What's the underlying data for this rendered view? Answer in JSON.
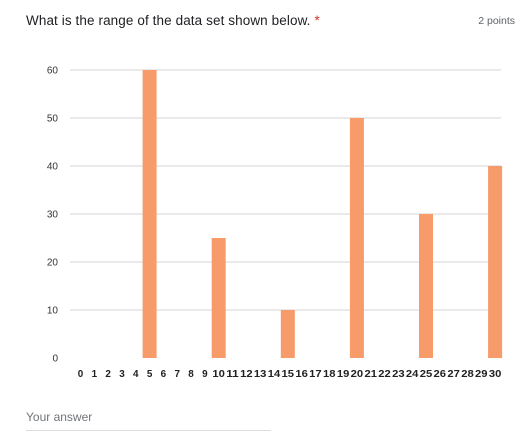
{
  "question": {
    "title": "What is the range of the data set shown below.",
    "required_marker": "*",
    "points": "2 points"
  },
  "answer": {
    "placeholder": "Your answer",
    "value": ""
  },
  "colors": {
    "bar": "#f79b6b",
    "grid": "#d5d5d5",
    "required": "#d93025"
  },
  "chart_data": {
    "type": "bar",
    "categories": [
      "0",
      "1",
      "2",
      "3",
      "4",
      "5",
      "6",
      "7",
      "8",
      "9",
      "10",
      "11",
      "12",
      "13",
      "14",
      "15",
      "16",
      "17",
      "18",
      "19",
      "20",
      "21",
      "22",
      "23",
      "24",
      "25",
      "26",
      "27",
      "28",
      "29",
      "30"
    ],
    "values": [
      0,
      0,
      0,
      0,
      0,
      60,
      0,
      0,
      0,
      0,
      25,
      0,
      0,
      0,
      0,
      10,
      0,
      0,
      0,
      0,
      50,
      0,
      0,
      0,
      0,
      30,
      0,
      0,
      0,
      0,
      40
    ],
    "y_ticks": [
      "0",
      "10",
      "20",
      "30",
      "40",
      "50",
      "60"
    ],
    "ylim": [
      0,
      60
    ],
    "grid": true,
    "legend": "none"
  }
}
